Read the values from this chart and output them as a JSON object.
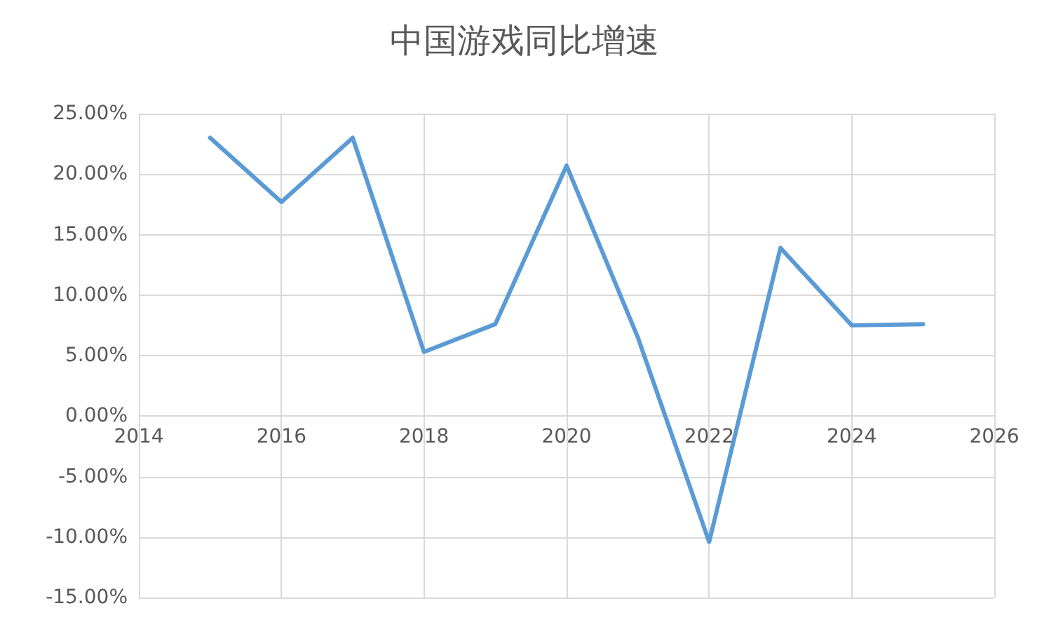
{
  "chart_data": {
    "type": "line",
    "title": "中国游戏同比增速",
    "x": [
      2015,
      2016,
      2017,
      2018,
      2019,
      2020,
      2021,
      2022,
      2023,
      2024,
      2025
    ],
    "series": [
      {
        "color": "#5b9bd5",
        "values": [
          23.0,
          17.7,
          23.0,
          5.3,
          7.6,
          20.7,
          6.5,
          -10.4,
          13.9,
          7.5,
          7.6
        ]
      }
    ],
    "xlim": [
      2014,
      2026
    ],
    "xticks": [
      2014,
      2016,
      2018,
      2020,
      2022,
      2024,
      2026
    ],
    "ylim": [
      -15,
      25
    ],
    "yticks": [
      {
        "value": -15,
        "label": "-15.00%"
      },
      {
        "value": -10,
        "label": "-10.00%"
      },
      {
        "value": -5,
        "label": "-5.00%"
      },
      {
        "value": 0,
        "label": "0.00%"
      },
      {
        "value": 5,
        "label": "5.00%"
      },
      {
        "value": 10,
        "label": "10.00%"
      },
      {
        "value": 15,
        "label": "15.00%"
      },
      {
        "value": 20,
        "label": "20.00%"
      },
      {
        "value": 25,
        "label": "25.00%"
      }
    ],
    "grid": true,
    "marker": "none",
    "line_style": "solid"
  }
}
